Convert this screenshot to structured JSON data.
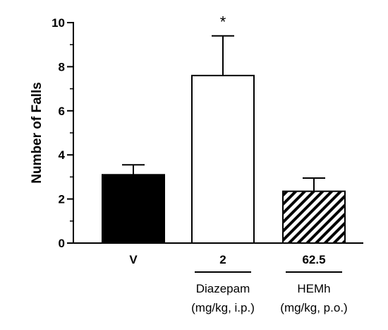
{
  "chart_data": {
    "type": "bar",
    "title": "",
    "xlabel": "",
    "ylabel": "Number of Falls",
    "ylim": [
      0,
      10
    ],
    "yticks": [
      "0",
      "2",
      "4",
      "6",
      "8",
      "10"
    ],
    "grid": false,
    "categories": [
      "V",
      "2",
      "62.5"
    ],
    "values": [
      3.1,
      7.6,
      2.35
    ],
    "errors": [
      0.45,
      1.8,
      0.6
    ],
    "annotations": [
      "",
      "*",
      ""
    ],
    "fills": [
      "solid",
      "white",
      "hatched"
    ],
    "fill_color": "#000000",
    "groups": [
      {
        "label": "Diazepam",
        "unit": "(mg/kg, i.p.)"
      },
      {
        "label": "HEMh",
        "unit": "(mg/kg, p.o.)"
      }
    ]
  }
}
